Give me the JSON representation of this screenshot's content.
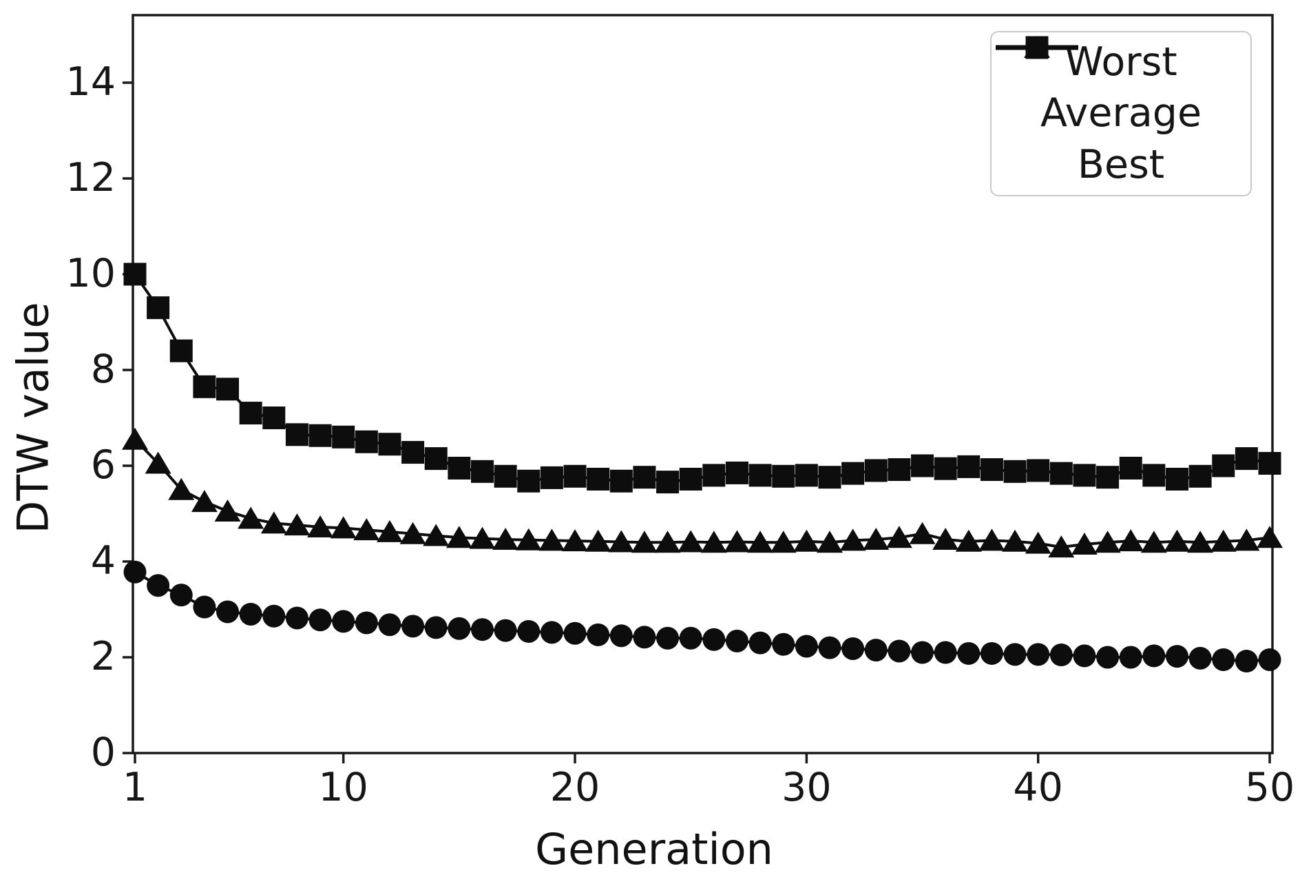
{
  "figure": {
    "background": "#ffffff",
    "ink_color": "#111111",
    "legend_border_color": "#c9c9c9"
  },
  "chart_data": {
    "type": "line",
    "title": "",
    "xlabel": "Generation",
    "ylabel": "DTW value",
    "x": [
      1,
      2,
      3,
      4,
      5,
      6,
      7,
      8,
      9,
      10,
      11,
      12,
      13,
      14,
      15,
      16,
      17,
      18,
      19,
      20,
      21,
      22,
      23,
      24,
      25,
      26,
      27,
      28,
      29,
      30,
      31,
      32,
      33,
      34,
      35,
      36,
      37,
      38,
      39,
      40,
      41,
      42,
      43,
      44,
      45,
      46,
      47,
      48,
      49,
      50
    ],
    "xlim": [
      1,
      50
    ],
    "ylim": [
      0,
      15.4
    ],
    "xticks": [
      1,
      10,
      20,
      30,
      40,
      50
    ],
    "yticks": [
      0,
      2,
      4,
      6,
      8,
      10,
      12,
      14
    ],
    "grid": false,
    "legend_position": "upper right",
    "series": [
      {
        "name": "Worst",
        "marker": "square",
        "color": "#0d0d0d",
        "values": [
          10.0,
          9.3,
          8.4,
          7.65,
          7.6,
          7.1,
          7.0,
          6.65,
          6.63,
          6.6,
          6.5,
          6.45,
          6.28,
          6.15,
          5.95,
          5.88,
          5.78,
          5.68,
          5.75,
          5.78,
          5.72,
          5.68,
          5.76,
          5.66,
          5.72,
          5.8,
          5.85,
          5.8,
          5.78,
          5.8,
          5.76,
          5.84,
          5.9,
          5.92,
          6.0,
          5.94,
          5.98,
          5.92,
          5.88,
          5.9,
          5.84,
          5.8,
          5.76,
          5.95,
          5.8,
          5.72,
          5.78,
          6.0,
          6.15,
          6.05
        ]
      },
      {
        "name": "Average",
        "marker": "triangle-up",
        "color": "#0d0d0d",
        "values": [
          6.55,
          6.05,
          5.5,
          5.25,
          5.05,
          4.9,
          4.8,
          4.76,
          4.72,
          4.7,
          4.66,
          4.62,
          4.58,
          4.54,
          4.5,
          4.48,
          4.46,
          4.45,
          4.44,
          4.43,
          4.42,
          4.41,
          4.4,
          4.4,
          4.41,
          4.4,
          4.41,
          4.4,
          4.4,
          4.42,
          4.4,
          4.44,
          4.46,
          4.5,
          4.58,
          4.46,
          4.42,
          4.44,
          4.42,
          4.38,
          4.3,
          4.36,
          4.4,
          4.43,
          4.4,
          4.42,
          4.4,
          4.42,
          4.44,
          4.5
        ]
      },
      {
        "name": "Best",
        "marker": "circle",
        "color": "#0d0d0d",
        "values": [
          3.78,
          3.5,
          3.3,
          3.05,
          2.95,
          2.9,
          2.86,
          2.82,
          2.78,
          2.75,
          2.72,
          2.68,
          2.65,
          2.62,
          2.6,
          2.58,
          2.56,
          2.54,
          2.52,
          2.5,
          2.47,
          2.45,
          2.42,
          2.4,
          2.4,
          2.37,
          2.34,
          2.3,
          2.27,
          2.23,
          2.2,
          2.18,
          2.15,
          2.13,
          2.1,
          2.1,
          2.08,
          2.08,
          2.06,
          2.06,
          2.05,
          2.03,
          2.0,
          2.0,
          2.03,
          2.02,
          1.98,
          1.95,
          1.92,
          1.95
        ]
      }
    ]
  }
}
